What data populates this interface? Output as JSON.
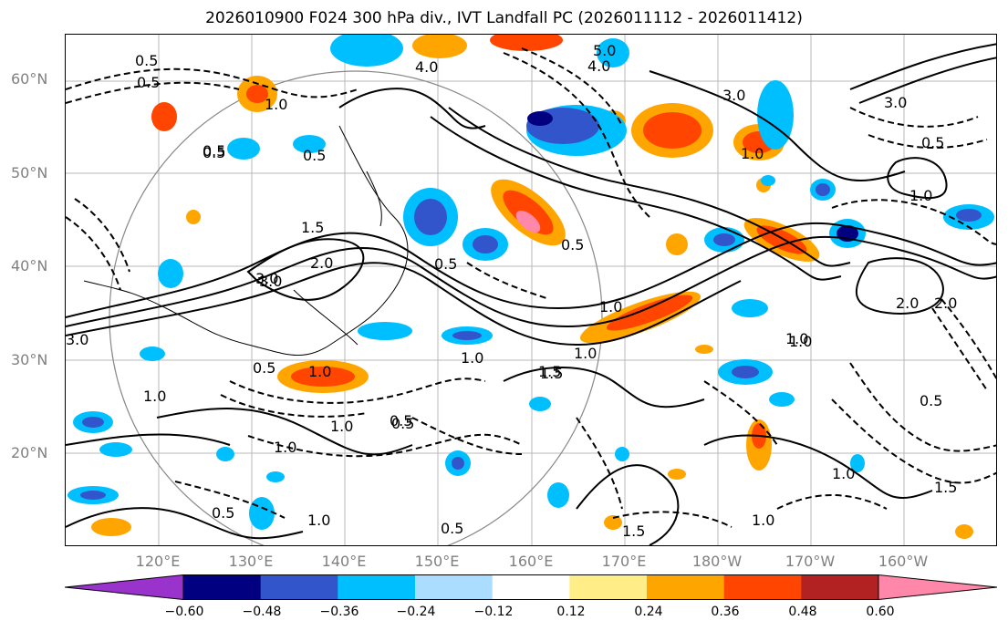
{
  "title": "2026010900 F024 300 hPa div., IVT Landfall PC (2026011112 - 2026011412)",
  "latitude_labels": [
    "60°N",
    "50°N",
    "40°N",
    "30°N",
    "20°N"
  ],
  "longitude_labels": [
    "120°E",
    "130°E",
    "140°E",
    "150°E",
    "160°E",
    "170°E",
    "180°W",
    "170°W",
    "160°W"
  ],
  "colorbar": {
    "ticks": [
      "−0.60",
      "−0.48",
      "−0.36",
      "−0.24",
      "−0.12",
      "0.12",
      "0.24",
      "0.36",
      "0.48",
      "0.60"
    ],
    "colors": [
      "#9933cc",
      "#000080",
      "#3355cc",
      "#00bfff",
      "#aaddff",
      "#ffffff",
      "#ffee88",
      "#ffa500",
      "#ff4500",
      "#b22222",
      "#ff88aa"
    ]
  },
  "contour_labels": [
    "0.5",
    "0.5",
    "4.0",
    "5.0",
    "4.0",
    "1.0",
    "1.0",
    "0.5",
    "0.5",
    "3.0",
    "1.0",
    "0.5",
    "1.5",
    "3.0",
    "2.0",
    "0.5",
    "1.0",
    "0.5",
    "1.5",
    "2.0",
    "1.0",
    "1.0",
    "1.0",
    "1.5",
    "1.0",
    "0.5",
    "1.0",
    "0.5",
    "1.0",
    "2.0",
    "0.5",
    "1.0",
    "0.5",
    "1.5",
    "1.0",
    "0.5",
    "1.0",
    "1.0",
    "1.5",
    "0.5",
    "1.0",
    "0.5",
    "1.5",
    "1.0",
    "3.0",
    "3.0",
    "3.0",
    "0.5",
    "2.0",
    "1.5"
  ]
}
